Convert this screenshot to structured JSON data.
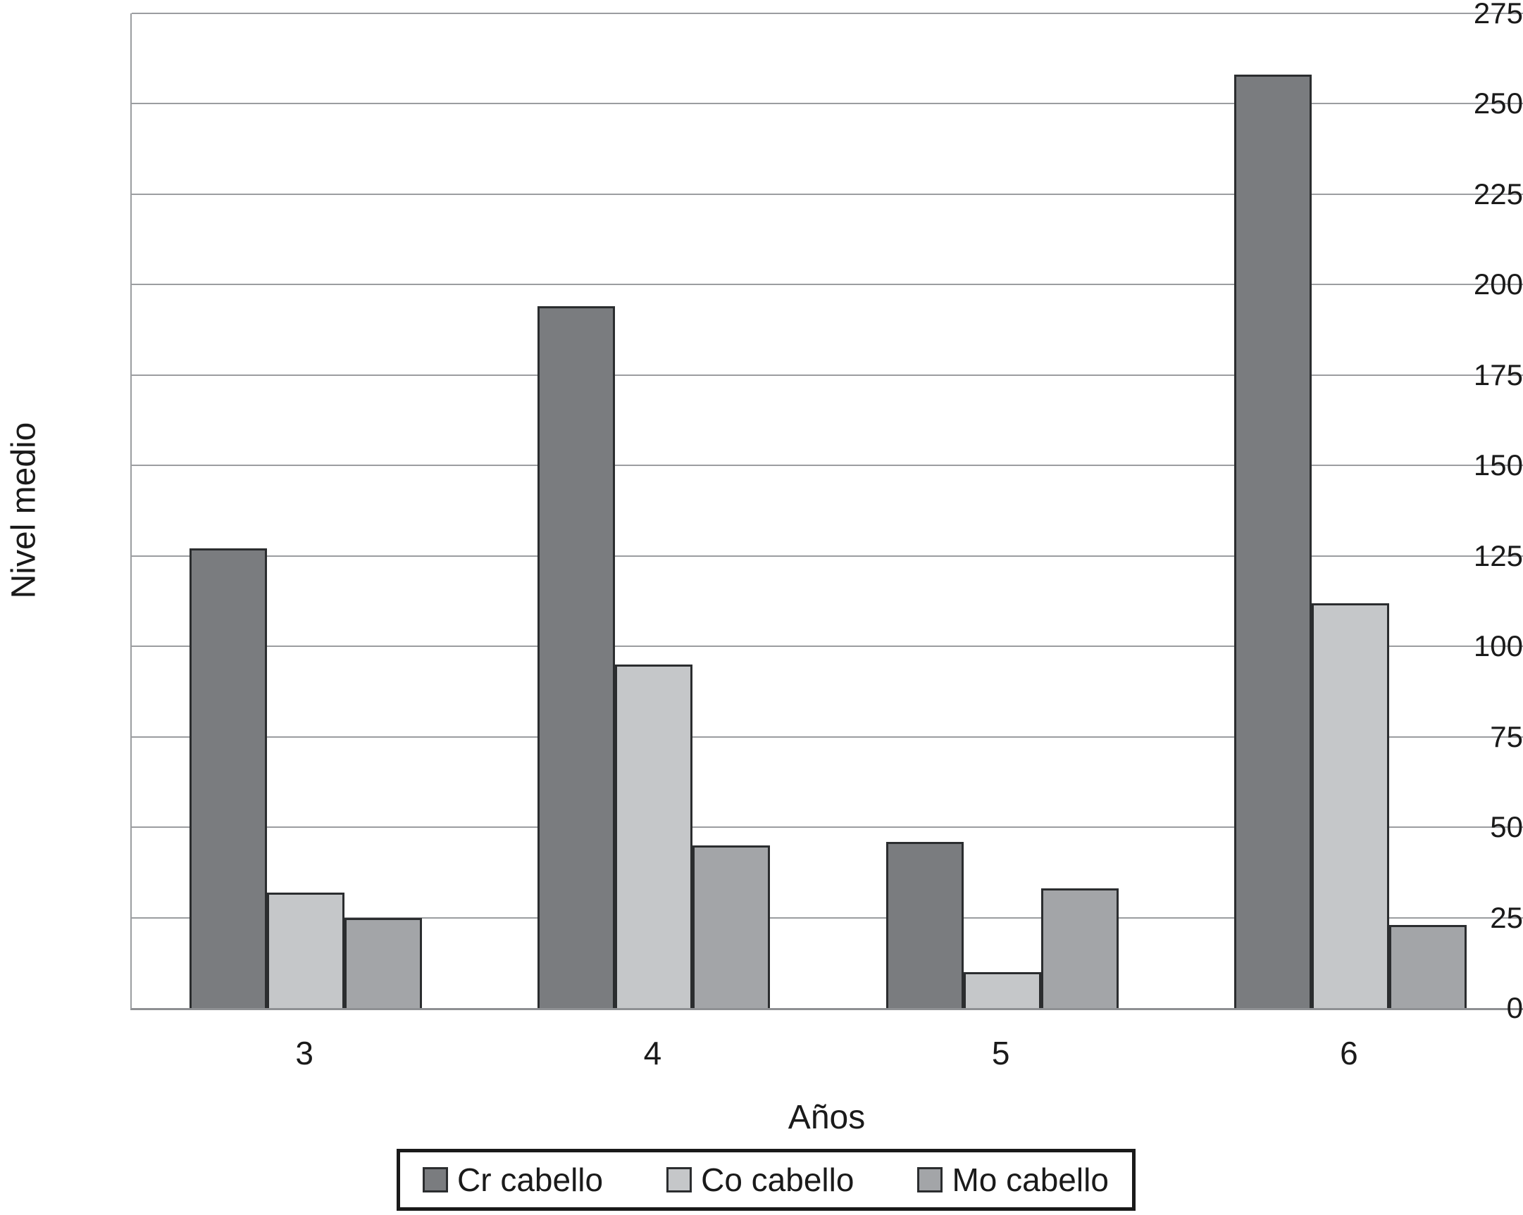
{
  "chart_data": {
    "type": "bar",
    "title": "",
    "xlabel": "Años",
    "ylabel": "Nivel medio",
    "categories": [
      "3",
      "4",
      "5",
      "6"
    ],
    "series": [
      {
        "name": "Cr cabello",
        "color": "#7a7c7f",
        "values": [
          127,
          194,
          46,
          258
        ]
      },
      {
        "name": "Co cabello",
        "color": "#c5c7c9",
        "values": [
          32,
          95,
          10,
          112
        ]
      },
      {
        "name": "Mo cabello",
        "color": "#a3a5a8",
        "values": [
          25,
          45,
          33,
          23
        ]
      }
    ],
    "ylim": [
      0,
      275
    ],
    "ytick_step": 25,
    "yticks": [
      0,
      25,
      50,
      75,
      100,
      125,
      150,
      175,
      200,
      225,
      250,
      275
    ],
    "grid": "horizontal-only",
    "legend_position": "bottom-center",
    "bar_border_color": "#2b2d2f",
    "gridline_color": "#9b9da0",
    "text_color": "#1a1a1a",
    "background_color": "#ffffff"
  }
}
